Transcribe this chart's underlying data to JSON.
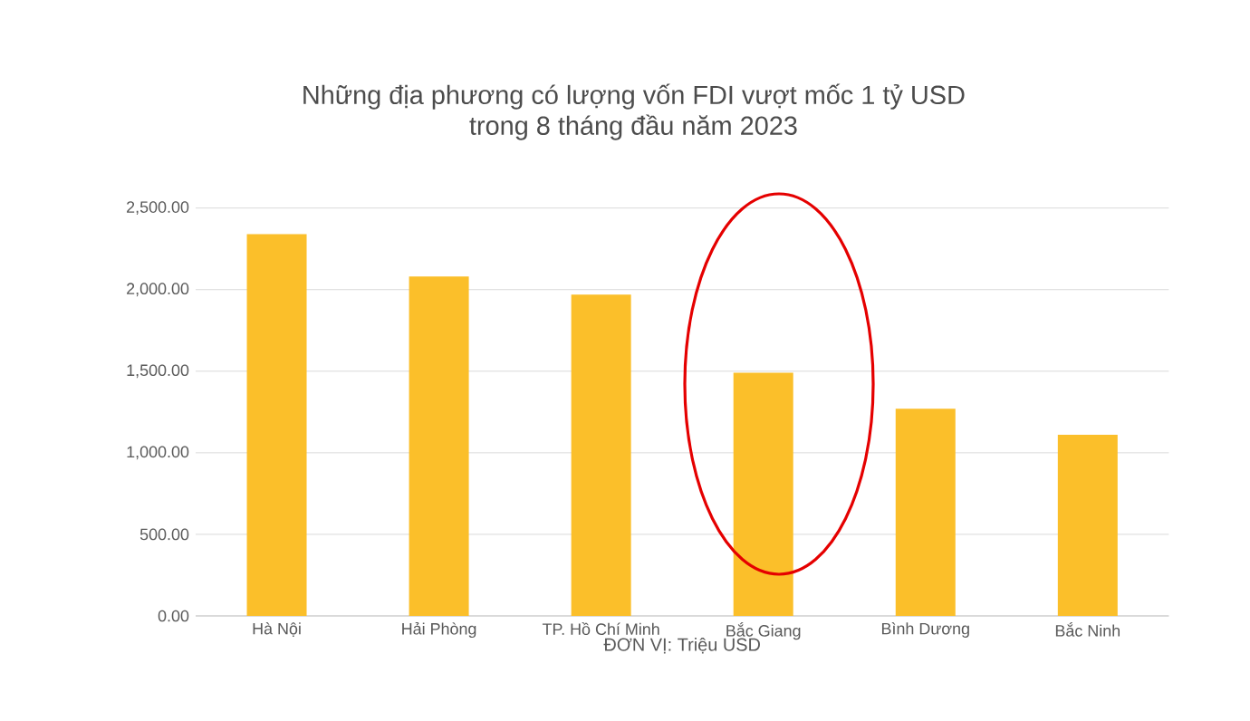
{
  "chart_data": {
    "type": "bar",
    "title": "Những địa phương có lượng vốn FDI vượt mốc 1 tỷ USD\ntrong 8 tháng đầu năm 2023",
    "xlabel": "ĐƠN VỊ: Triệu USD",
    "categories": [
      "Hà Nội",
      "Hải Phòng",
      "TP. Hồ Chí Minh",
      "Bắc Giang",
      "Bình Dương",
      "Bắc Ninh"
    ],
    "values": [
      2340,
      2080,
      1970,
      1490,
      1270,
      1110
    ],
    "color": "#fbbf2a",
    "ylim": [
      0,
      2500
    ],
    "yticks": [
      {
        "value": 0,
        "label": "0.00"
      },
      {
        "value": 500,
        "label": "500.00"
      },
      {
        "value": 1000,
        "label": "1,000.00"
      },
      {
        "value": 1500,
        "label": "1,500.00"
      },
      {
        "value": 2000,
        "label": "2,000.00"
      },
      {
        "value": 2500,
        "label": "2,500.00"
      }
    ],
    "grid": "y"
  }
}
